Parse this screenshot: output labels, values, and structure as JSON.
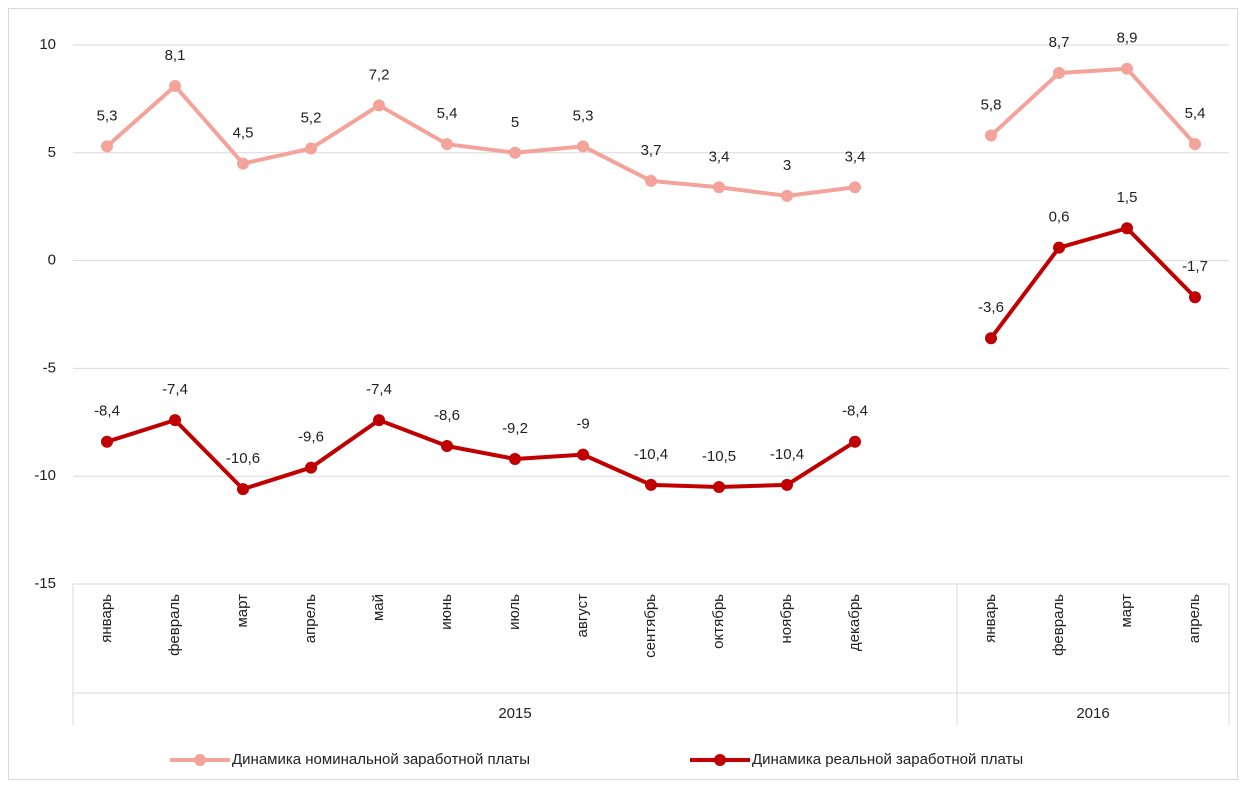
{
  "chart_data": {
    "type": "line",
    "categories": [
      "январь",
      "февраль",
      "март",
      "апрель",
      "май",
      "июнь",
      "июль",
      "август",
      "сентябрь",
      "октябрь",
      "ноябрь",
      "декабрь",
      null,
      "январь",
      "февраль",
      "март",
      "апрель"
    ],
    "group_labels": [
      "2015",
      "2016"
    ],
    "series": [
      {
        "name": "Динамика номинальной заработной платы",
        "color": "#f4a39a",
        "values": [
          5.3,
          8.1,
          4.5,
          5.2,
          7.2,
          5.4,
          5,
          5.3,
          3.7,
          3.4,
          3,
          3.4,
          null,
          5.8,
          8.7,
          8.9,
          5.4
        ],
        "value_labels": [
          "5,3",
          "8,1",
          "4,5",
          "5,2",
          "7,2",
          "5,4",
          "5",
          "5,3",
          "3,7",
          "3,4",
          "3",
          "3,4",
          null,
          "5,8",
          "8,7",
          "8,9",
          "5,4"
        ]
      },
      {
        "name": "Динамика реальной заработной платы",
        "color": "#c00000",
        "values": [
          -8.4,
          -7.4,
          -10.6,
          -9.6,
          -7.4,
          -8.6,
          -9.2,
          -9,
          -10.4,
          -10.5,
          -10.4,
          -8.4,
          null,
          -3.6,
          0.6,
          1.5,
          -1.7
        ],
        "value_labels": [
          "-8,4",
          "-7,4",
          "-10,6",
          "-9,6",
          "-7,4",
          "-8,6",
          "-9,2",
          "-9",
          "-10,4",
          "-10,5",
          "-10,4",
          "-8,4",
          null,
          "-3,6",
          "0,6",
          "1,5",
          "-1,7"
        ]
      }
    ],
    "ylim": [
      -15,
      10
    ],
    "yticks": [
      -15,
      -10,
      -5,
      0,
      5,
      10
    ],
    "grid": true,
    "legend": "bottom"
  }
}
